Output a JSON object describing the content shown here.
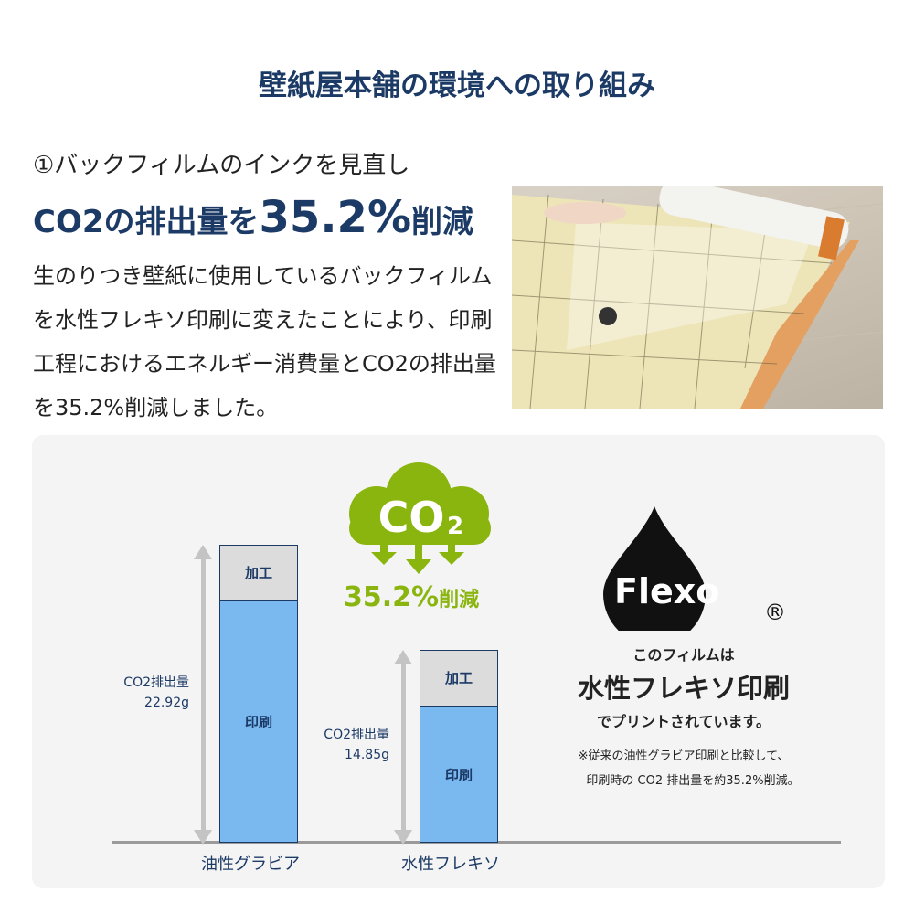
{
  "title": "壁紙屋本舗の環境への取り組み",
  "section": {
    "subtitle": "①バックフィルムのインクを見直し",
    "headline_pre": "CO2の排出量を",
    "headline_value": "35.2%",
    "headline_post": "削減",
    "body": "生のりつき壁紙に使用しているバックフィルムを水性フレキソ印刷に変えたことにより、印刷工程におけるエネルギー消費量とCO2の排出量を35.2%削減しました。"
  },
  "cloud": {
    "label": "CO",
    "subscript": "2",
    "reduction_value": "35.2%",
    "reduction_suffix": "削減",
    "color": "#8ab40e"
  },
  "flexo": {
    "logo_text": "Flexo",
    "registered": "®",
    "line1": "このフィルムは",
    "line2": "水性フレキソ印刷",
    "line3": "でプリントされています。",
    "note1": "※従来の油性グラビア印刷と比較して、",
    "note2": "印刷時の CO2 排出量を約35.2%削減。"
  },
  "chart_data": {
    "type": "bar",
    "stacked": true,
    "categories": [
      "油性グラビア",
      "水性フレキソ"
    ],
    "totals": [
      22.92,
      14.85
    ],
    "total_labels": [
      {
        "label": "CO2排出量",
        "value": "22.92g"
      },
      {
        "label": "CO2排出量",
        "value": "14.85g"
      }
    ],
    "series": [
      {
        "name": "印刷",
        "values": [
          18.6,
          10.5
        ],
        "color": "#7ab8f0"
      },
      {
        "name": "加工",
        "values": [
          4.3,
          4.4
        ],
        "color": "#dcdcdc"
      }
    ],
    "unit": "g",
    "ylim": [
      0,
      22.92
    ]
  }
}
